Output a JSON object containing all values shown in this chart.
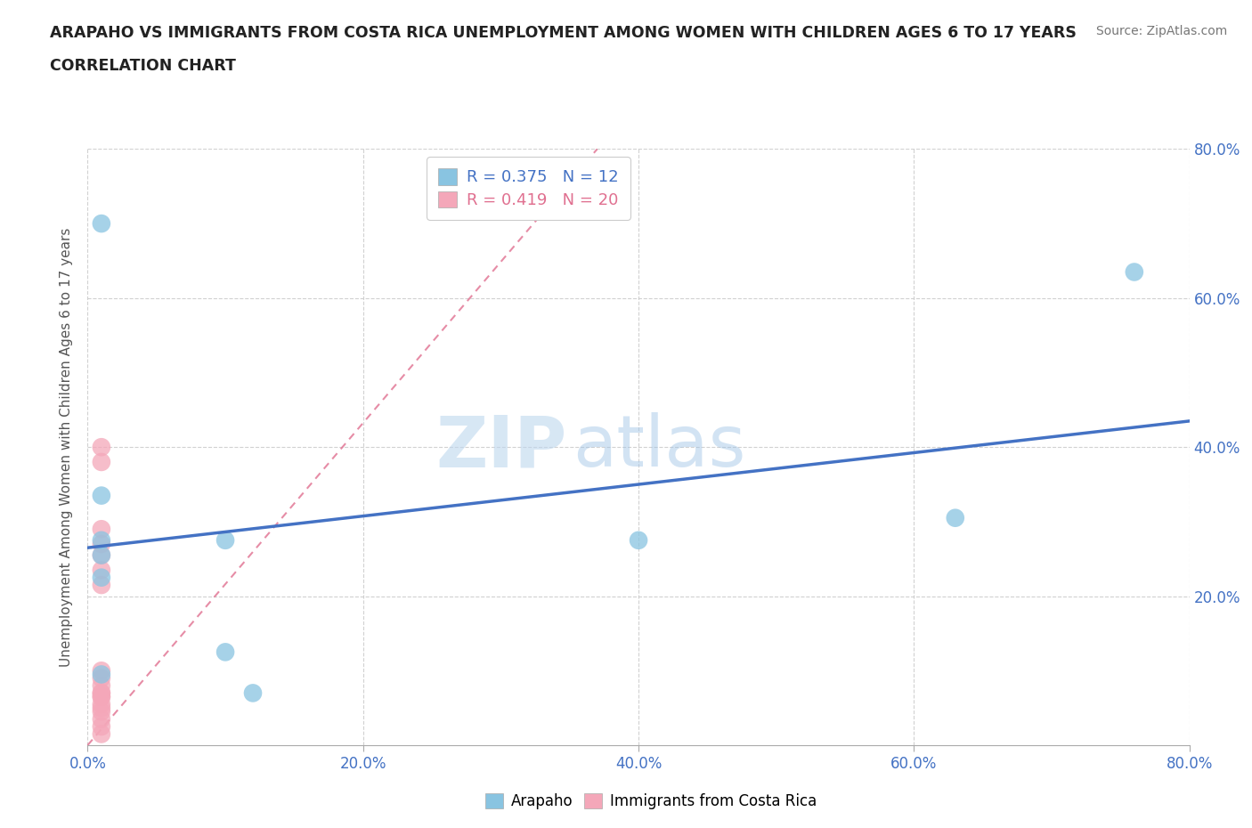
{
  "title_line1": "ARAPAHO VS IMMIGRANTS FROM COSTA RICA UNEMPLOYMENT AMONG WOMEN WITH CHILDREN AGES 6 TO 17 YEARS",
  "title_line2": "CORRELATION CHART",
  "source": "Source: ZipAtlas.com",
  "ylabel": "Unemployment Among Women with Children Ages 6 to 17 years",
  "xlim": [
    0.0,
    0.8
  ],
  "ylim": [
    0.0,
    0.8
  ],
  "xtick_labels": [
    "0.0%",
    "20.0%",
    "40.0%",
    "60.0%",
    "80.0%"
  ],
  "xtick_vals": [
    0.0,
    0.2,
    0.4,
    0.6,
    0.8
  ],
  "ytick_vals": [
    0.2,
    0.4,
    0.6,
    0.8
  ],
  "right_ytick_labels": [
    "20.0%",
    "40.0%",
    "60.0%",
    "80.0%"
  ],
  "right_ytick_vals": [
    0.2,
    0.4,
    0.6,
    0.8
  ],
  "blue_color": "#89C4E1",
  "pink_color": "#F4A7B9",
  "blue_line_color": "#4472C4",
  "pink_line_color": "#E07090",
  "grid_color": "#cccccc",
  "watermark_zip": "ZIP",
  "watermark_atlas": "atlas",
  "legend_blue_R": "0.375",
  "legend_blue_N": "12",
  "legend_pink_R": "0.419",
  "legend_pink_N": "20",
  "blue_points_x": [
    0.01,
    0.76,
    0.01,
    0.01,
    0.1,
    0.01,
    0.01,
    0.1,
    0.4,
    0.63,
    0.01,
    0.12
  ],
  "blue_points_y": [
    0.7,
    0.635,
    0.335,
    0.275,
    0.275,
    0.255,
    0.225,
    0.125,
    0.275,
    0.305,
    0.095,
    0.07
  ],
  "pink_points_x": [
    0.01,
    0.01,
    0.01,
    0.01,
    0.01,
    0.01,
    0.01,
    0.01,
    0.01,
    0.01,
    0.01,
    0.01,
    0.01,
    0.01,
    0.01,
    0.01,
    0.01,
    0.01,
    0.01,
    0.01
  ],
  "pink_points_y": [
    0.4,
    0.38,
    0.29,
    0.27,
    0.255,
    0.235,
    0.215,
    0.1,
    0.09,
    0.08,
    0.07,
    0.065,
    0.055,
    0.045,
    0.035,
    0.025,
    0.015,
    0.05,
    0.07,
    0.065
  ],
  "blue_trend_x": [
    0.0,
    0.8
  ],
  "blue_trend_y": [
    0.265,
    0.435
  ],
  "pink_trend_x": [
    0.0,
    0.37
  ],
  "pink_trend_y": [
    0.0,
    0.8
  ]
}
